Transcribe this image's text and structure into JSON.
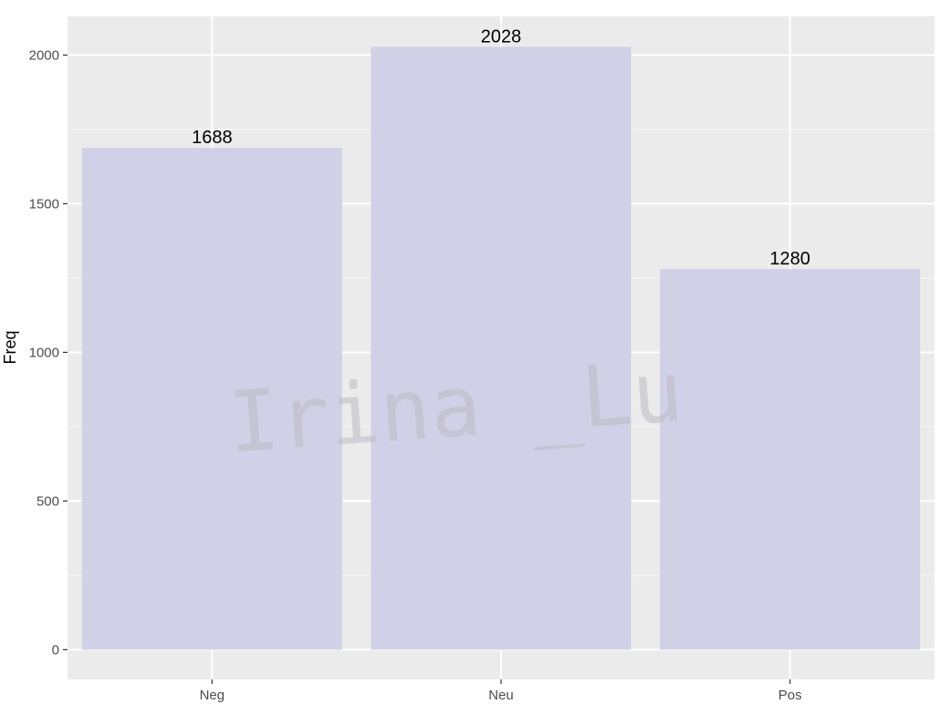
{
  "chart_data": {
    "type": "bar",
    "categories": [
      "Neg",
      "Neu",
      "Pos"
    ],
    "values": [
      1688,
      2028,
      1280
    ],
    "data_labels": [
      "1688",
      "2028",
      "1280"
    ],
    "title": "",
    "xlabel": "",
    "ylabel": "Freq",
    "ylim": [
      -100,
      2130
    ],
    "yticks": [
      0,
      500,
      1000,
      1500,
      2000
    ],
    "ytick_labels": [
      "0",
      "500",
      "1000",
      "1500",
      "2000"
    ],
    "grid": true,
    "legend": "none",
    "colors": {
      "panel": "#ebebeb",
      "grid_major": "#ffffff",
      "grid_minor": "#f6f6f6",
      "bar": "#d0d0e6",
      "tick": "#333333"
    }
  },
  "watermark": {
    "text": "Irina _Lu"
  }
}
